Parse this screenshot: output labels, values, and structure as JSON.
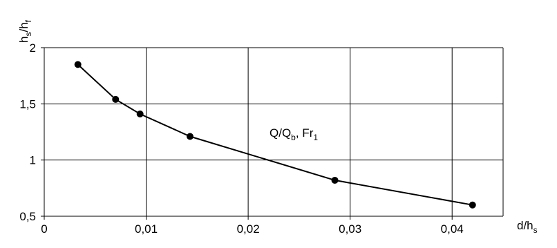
{
  "chart_data": {
    "type": "line",
    "series": [
      {
        "x": [
          0.0033,
          0.007,
          0.0094,
          0.0143,
          0.0285,
          0.042
        ],
        "y": [
          1.85,
          1.54,
          1.41,
          1.21,
          0.82,
          0.6
        ],
        "color": "#000000",
        "marker": "circle"
      }
    ],
    "xlim": [
      0,
      0.045
    ],
    "ylim": [
      0.5,
      2
    ],
    "x_ticks": [
      0,
      0.01,
      0.02,
      0.03,
      0.04
    ],
    "x_tick_labels": [
      "0",
      "0,01",
      "0,02",
      "0,03",
      "0,04"
    ],
    "y_ticks": [
      0.5,
      1,
      1.5,
      2
    ],
    "y_tick_labels": [
      "0,5",
      "1",
      "1,5",
      "2"
    ],
    "xlabel": {
      "main": "d/h",
      "sub": "s"
    },
    "ylabel": {
      "part1": "h",
      "sub1": "s",
      "part2": "/h",
      "sub2": "f"
    },
    "annotation": {
      "part1": "Q/Q",
      "sub1": "b",
      "part2": ", Fr",
      "sub2": "1"
    },
    "grid": true
  }
}
